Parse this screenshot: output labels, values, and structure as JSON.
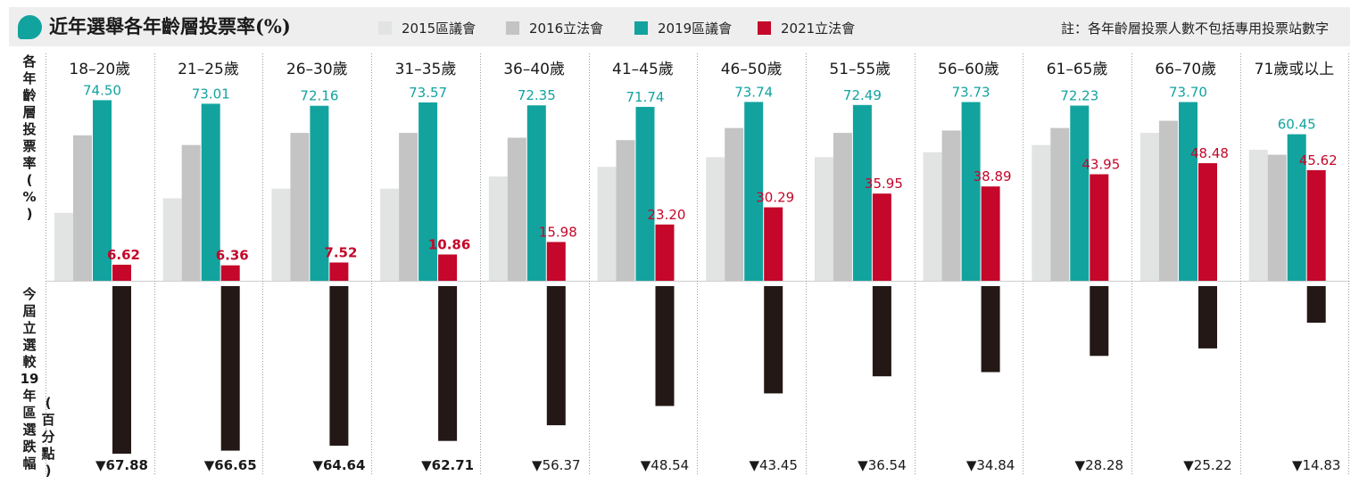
{
  "title": "近年選舉各年齡層投票率(%)",
  "note": "註：各年齡層投票人數不包括專用投票站數字",
  "side_label_top": "各\n年\n齡\n層\n投\n票\n率\n(\n%\n)",
  "side_label_bottom": "今\n屆\n立\n選\n較\n19\n年\n區\n選\n跌\n幅",
  "side_label_bottom_unit": "(\n百\n分\n點\n)",
  "legend": [
    {
      "label": "2015區議會",
      "color": "#e1e4e3"
    },
    {
      "label": "2016立法會",
      "color": "#c4c4c4"
    },
    {
      "label": "2019區議會",
      "color": "#12a39f"
    },
    {
      "label": "2021立法會",
      "color": "#c4072a"
    }
  ],
  "chart_data": {
    "type": "bar",
    "title": "近年選舉各年齡層投票率(%)",
    "categories": [
      "18–20歲",
      "21–25歲",
      "26–30歲",
      "31–35歲",
      "36–40歲",
      "41–45歲",
      "46–50歲",
      "51–55歲",
      "56–60歲",
      "61–65歲",
      "66–70歲",
      "71歲或以上"
    ],
    "series": [
      {
        "name": "2015區議會",
        "values": [
          28,
          34,
          38,
          38,
          43,
          47,
          51,
          51,
          53,
          56,
          61,
          54
        ]
      },
      {
        "name": "2016立法會",
        "values": [
          60,
          56,
          61,
          61,
          59,
          58,
          63,
          61,
          62,
          63,
          66,
          52
        ]
      },
      {
        "name": "2019區議會",
        "values": [
          74.5,
          73.01,
          72.16,
          73.57,
          72.35,
          71.74,
          73.74,
          72.49,
          73.73,
          72.23,
          73.7,
          60.45
        ]
      },
      {
        "name": "2021立法會",
        "values": [
          6.62,
          6.36,
          7.52,
          10.86,
          15.98,
          23.2,
          30.29,
          35.95,
          38.89,
          43.95,
          48.48,
          45.62
        ]
      }
    ],
    "labeled_values_2019": [
      "74.50",
      "73.01",
      "72.16",
      "73.57",
      "72.35",
      "71.74",
      "73.74",
      "72.49",
      "73.73",
      "72.23",
      "73.70",
      "60.45"
    ],
    "labeled_values_2021": [
      "6.62",
      "6.36",
      "7.52",
      "10.86",
      "15.98",
      "23.20",
      "30.29",
      "35.95",
      "38.89",
      "43.95",
      "48.48",
      "45.62"
    ],
    "bold_2021_labels": [
      true,
      true,
      true,
      true,
      false,
      false,
      false,
      false,
      false,
      false,
      false,
      false
    ],
    "drop": {
      "values": [
        67.88,
        66.65,
        64.64,
        62.71,
        56.37,
        48.54,
        43.45,
        36.54,
        34.84,
        28.28,
        25.22,
        14.83
      ],
      "labels": [
        "▼67.88",
        "▼66.65",
        "▼64.64",
        "▼62.71",
        "▼56.37",
        "▼48.54",
        "▼43.45",
        "▼36.54",
        "▼34.84",
        "▼28.28",
        "▼25.22",
        "▼14.83"
      ],
      "bold": [
        true,
        true,
        true,
        true,
        false,
        false,
        false,
        false,
        false,
        false,
        false,
        false
      ],
      "color": "#231815"
    },
    "ylim": [
      0,
      80
    ],
    "grid": false,
    "legend_position": "top"
  }
}
